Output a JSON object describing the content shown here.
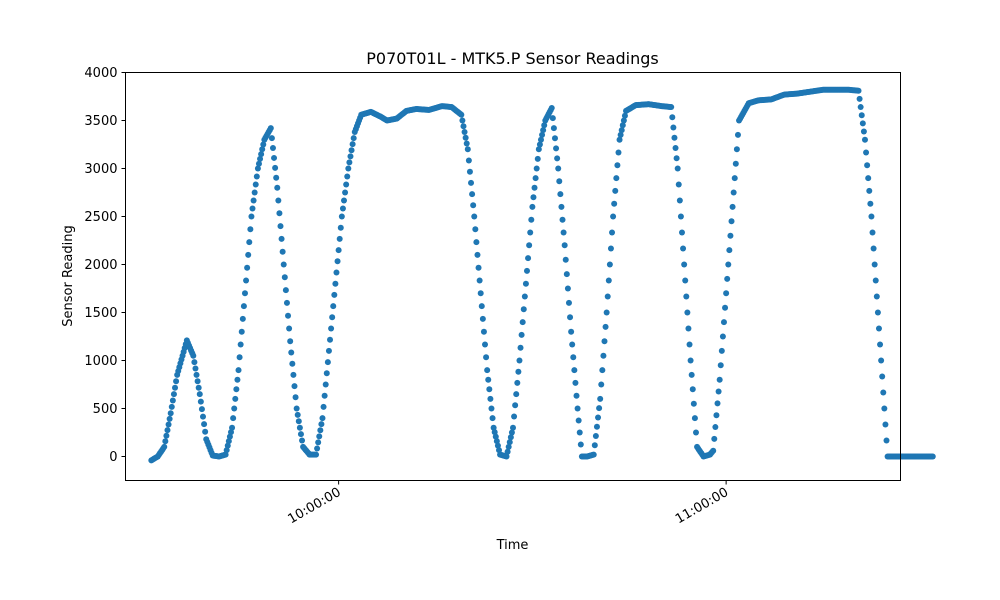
{
  "chart_data": {
    "type": "scatter",
    "title": "P070T01L - MTK5.P Sensor Readings",
    "xlabel": "Time",
    "ylabel": "Sensor Reading",
    "x_unit": "time of day",
    "xlim": [
      "09:27:00",
      "11:27:00"
    ],
    "ylim": [
      -250,
      4000
    ],
    "x_ticks": [
      {
        "value": "10:00:00",
        "label": "10:00:00"
      },
      {
        "value": "11:00:00",
        "label": "11:00:00"
      }
    ],
    "y_ticks": [
      0,
      500,
      1000,
      1500,
      2000,
      2500,
      3000,
      3500,
      4000
    ],
    "grid": false,
    "legend": "none",
    "series": [
      {
        "color": "#1f77b4",
        "marker": "circle",
        "points": [
          [
            "09:31:00",
            -40
          ],
          [
            "09:32:00",
            0
          ],
          [
            "09:33:00",
            100
          ],
          [
            "09:34:00",
            450
          ],
          [
            "09:35:00",
            850
          ],
          [
            "09:36:30",
            1210
          ],
          [
            "09:37:30",
            1050
          ],
          [
            "09:38:30",
            650
          ],
          [
            "09:39:30",
            180
          ],
          [
            "09:40:30",
            10
          ],
          [
            "09:41:30",
            0
          ],
          [
            "09:42:30",
            20
          ],
          [
            "09:43:30",
            300
          ],
          [
            "09:44:30",
            900
          ],
          [
            "09:45:30",
            1700
          ],
          [
            "09:46:30",
            2500
          ],
          [
            "09:47:30",
            3000
          ],
          [
            "09:48:30",
            3300
          ],
          [
            "09:49:30",
            3420
          ],
          [
            "09:50:30",
            2800
          ],
          [
            "09:51:30",
            2000
          ],
          [
            "09:52:30",
            1200
          ],
          [
            "09:53:30",
            500
          ],
          [
            "09:54:30",
            100
          ],
          [
            "09:55:30",
            20
          ],
          [
            "09:56:30",
            20
          ],
          [
            "09:57:30",
            400
          ],
          [
            "09:58:30",
            1100
          ],
          [
            "09:59:30",
            1800
          ],
          [
            "10:00:30",
            2500
          ],
          [
            "10:01:30",
            3000
          ],
          [
            "10:02:30",
            3380
          ],
          [
            "10:03:30",
            3560
          ],
          [
            "10:05:00",
            3590
          ],
          [
            "10:06:30",
            3540
          ],
          [
            "10:07:30",
            3500
          ],
          [
            "10:09:00",
            3520
          ],
          [
            "10:10:30",
            3600
          ],
          [
            "10:12:00",
            3620
          ],
          [
            "10:14:00",
            3610
          ],
          [
            "10:16:00",
            3650
          ],
          [
            "10:17:30",
            3640
          ],
          [
            "10:19:00",
            3560
          ],
          [
            "10:20:00",
            3200
          ],
          [
            "10:21:00",
            2500
          ],
          [
            "10:22:00",
            1700
          ],
          [
            "10:23:00",
            900
          ],
          [
            "10:24:00",
            300
          ],
          [
            "10:25:00",
            20
          ],
          [
            "10:26:00",
            0
          ],
          [
            "10:27:00",
            300
          ],
          [
            "10:28:00",
            1000
          ],
          [
            "10:29:00",
            1800
          ],
          [
            "10:30:00",
            2600
          ],
          [
            "10:31:00",
            3200
          ],
          [
            "10:32:00",
            3500
          ],
          [
            "10:33:00",
            3630
          ],
          [
            "10:34:00",
            3000
          ],
          [
            "10:35:00",
            2200
          ],
          [
            "10:36:00",
            1300
          ],
          [
            "10:37:00",
            500
          ],
          [
            "10:37:40",
            0
          ],
          [
            "10:38:30",
            0
          ],
          [
            "10:39:30",
            20
          ],
          [
            "10:40:30",
            600
          ],
          [
            "10:41:30",
            1500
          ],
          [
            "10:42:30",
            2500
          ],
          [
            "10:43:30",
            3300
          ],
          [
            "10:44:30",
            3600
          ],
          [
            "10:46:00",
            3660
          ],
          [
            "10:48:00",
            3670
          ],
          [
            "10:50:00",
            3650
          ],
          [
            "10:51:30",
            3640
          ],
          [
            "10:52:30",
            3000
          ],
          [
            "10:53:30",
            2000
          ],
          [
            "10:54:30",
            1000
          ],
          [
            "10:55:30",
            100
          ],
          [
            "10:56:30",
            0
          ],
          [
            "10:57:30",
            20
          ],
          [
            "10:58:00",
            60
          ],
          [
            "10:59:00",
            800
          ],
          [
            "11:00:00",
            1700
          ],
          [
            "11:01:00",
            2600
          ],
          [
            "11:02:00",
            3500
          ],
          [
            "11:03:30",
            3680
          ],
          [
            "11:05:00",
            3710
          ],
          [
            "11:07:00",
            3720
          ],
          [
            "11:09:00",
            3770
          ],
          [
            "11:11:00",
            3780
          ],
          [
            "11:13:00",
            3800
          ],
          [
            "11:15:00",
            3820
          ],
          [
            "11:17:00",
            3820
          ],
          [
            "11:19:00",
            3820
          ],
          [
            "11:20:30",
            3810
          ],
          [
            "11:21:30",
            3300
          ],
          [
            "11:22:30",
            2500
          ],
          [
            "11:23:30",
            1500
          ],
          [
            "11:24:30",
            500
          ],
          [
            "11:25:00",
            0
          ],
          [
            "11:27:30",
            0
          ],
          [
            "11:30:00",
            0
          ],
          [
            "11:32:00",
            0
          ]
        ]
      }
    ]
  }
}
